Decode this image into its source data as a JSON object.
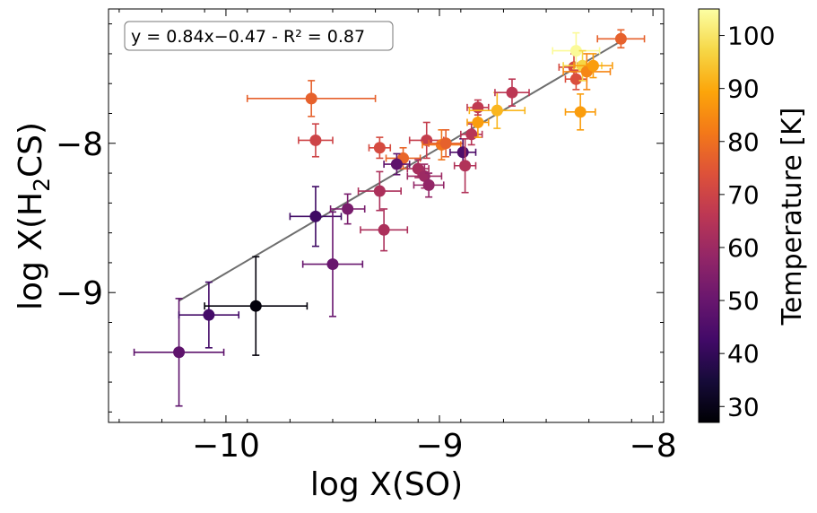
{
  "chart_data": {
    "type": "scatter",
    "title": "",
    "xlabel": "log X(SO)",
    "ylabel_prefix": "log X(H",
    "ylabel_sub": "2",
    "ylabel_suffix": "CS)",
    "xlim": [
      -10.55,
      -7.95
    ],
    "ylim": [
      -9.87,
      -7.1
    ],
    "x_ticks": [
      -10,
      -9,
      -8
    ],
    "x_tick_labels": [
      "−10",
      "−9",
      "−8"
    ],
    "y_ticks": [
      -9,
      -8
    ],
    "y_tick_labels": [
      "−9",
      "−8"
    ],
    "fit": {
      "label": "y = 0.84x−0.47 - R² = 0.87",
      "slope": 0.84,
      "intercept": -0.47,
      "x_range": [
        -10.22,
        -8.15
      ],
      "color": "#6e6e6e"
    },
    "colorbar": {
      "label": "Temperature [K]",
      "min": 27,
      "max": 105,
      "ticks": [
        30,
        40,
        50,
        60,
        70,
        80,
        90,
        100
      ],
      "tick_labels": [
        "30",
        "40",
        "50",
        "60",
        "70",
        "80",
        "90",
        "100"
      ],
      "colormap": "inferno"
    },
    "points": [
      {
        "x": -10.22,
        "y": -9.4,
        "xerr": 0.21,
        "yerr": 0.36,
        "t": 48
      },
      {
        "x": -10.08,
        "y": -9.15,
        "xerr": 0.14,
        "yerr": 0.22,
        "t": 43
      },
      {
        "x": -9.86,
        "y": -9.09,
        "xerr": 0.24,
        "yerr": 0.33,
        "t": 28
      },
      {
        "x": -9.58,
        "y": -8.49,
        "xerr": 0.12,
        "yerr": 0.2,
        "t": 42
      },
      {
        "x": -9.5,
        "y": -8.81,
        "xerr": 0.14,
        "yerr": 0.35,
        "t": 50
      },
      {
        "x": -9.43,
        "y": -8.44,
        "xerr": 0.08,
        "yerr": 0.1,
        "t": 53
      },
      {
        "x": -9.6,
        "y": -7.7,
        "xerr": 0.3,
        "yerr": 0.12,
        "t": 77
      },
      {
        "x": -9.58,
        "y": -7.98,
        "xerr": 0.08,
        "yerr": 0.11,
        "t": 70
      },
      {
        "x": -9.28,
        "y": -8.03,
        "xerr": 0.05,
        "yerr": 0.07,
        "t": 72
      },
      {
        "x": -9.26,
        "y": -8.58,
        "xerr": 0.11,
        "yerr": 0.14,
        "t": 63
      },
      {
        "x": -9.28,
        "y": -8.32,
        "xerr": 0.1,
        "yerr": 0.13,
        "t": 63
      },
      {
        "x": -9.17,
        "y": -8.1,
        "xerr": 0.08,
        "yerr": 0.07,
        "t": 78
      },
      {
        "x": -9.2,
        "y": -8.14,
        "xerr": 0.06,
        "yerr": 0.07,
        "t": 48
      },
      {
        "x": -9.1,
        "y": -8.17,
        "xerr": 0.05,
        "yerr": 0.06,
        "t": 62
      },
      {
        "x": -9.07,
        "y": -8.22,
        "xerr": 0.08,
        "yerr": 0.08,
        "t": 60
      },
      {
        "x": -9.06,
        "y": -7.98,
        "xerr": 0.08,
        "yerr": 0.12,
        "t": 68
      },
      {
        "x": -9.05,
        "y": -8.28,
        "xerr": 0.07,
        "yerr": 0.08,
        "t": 58
      },
      {
        "x": -8.99,
        "y": -8.01,
        "xerr": 0.09,
        "yerr": 0.1,
        "t": 81
      },
      {
        "x": -8.97,
        "y": -8.0,
        "xerr": 0.08,
        "yerr": 0.09,
        "t": 77
      },
      {
        "x": -8.89,
        "y": -8.06,
        "xerr": 0.06,
        "yerr": 0.09,
        "t": 45
      },
      {
        "x": -8.88,
        "y": -8.15,
        "xerr": 0.05,
        "yerr": 0.18,
        "t": 64
      },
      {
        "x": -8.85,
        "y": -7.94,
        "xerr": 0.05,
        "yerr": 0.07,
        "t": 65
      },
      {
        "x": -8.82,
        "y": -7.86,
        "xerr": 0.05,
        "yerr": 0.1,
        "t": 88
      },
      {
        "x": -8.82,
        "y": -7.76,
        "xerr": 0.05,
        "yerr": 0.05,
        "t": 67
      },
      {
        "x": -8.73,
        "y": -7.78,
        "xerr": 0.13,
        "yerr": 0.12,
        "t": 92
      },
      {
        "x": -8.66,
        "y": -7.66,
        "xerr": 0.08,
        "yerr": 0.09,
        "t": 66
      },
      {
        "x": -8.37,
        "y": -7.49,
        "xerr": 0.07,
        "yerr": 0.09,
        "t": 72
      },
      {
        "x": -8.36,
        "y": -7.57,
        "xerr": 0.05,
        "yerr": 0.07,
        "t": 73
      },
      {
        "x": -8.36,
        "y": -7.38,
        "xerr": 0.11,
        "yerr": 0.12,
        "t": 104
      },
      {
        "x": -8.33,
        "y": -7.48,
        "xerr": 0.09,
        "yerr": 0.1,
        "t": 97
      },
      {
        "x": -8.34,
        "y": -7.79,
        "xerr": 0.07,
        "yerr": 0.12,
        "t": 88
      },
      {
        "x": -8.31,
        "y": -7.52,
        "xerr": 0.11,
        "yerr": 0.12,
        "t": 84
      },
      {
        "x": -8.28,
        "y": -7.48,
        "xerr": 0.09,
        "yerr": 0.08,
        "t": 88
      },
      {
        "x": -8.15,
        "y": -7.3,
        "xerr": 0.11,
        "yerr": 0.06,
        "t": 77
      }
    ]
  }
}
